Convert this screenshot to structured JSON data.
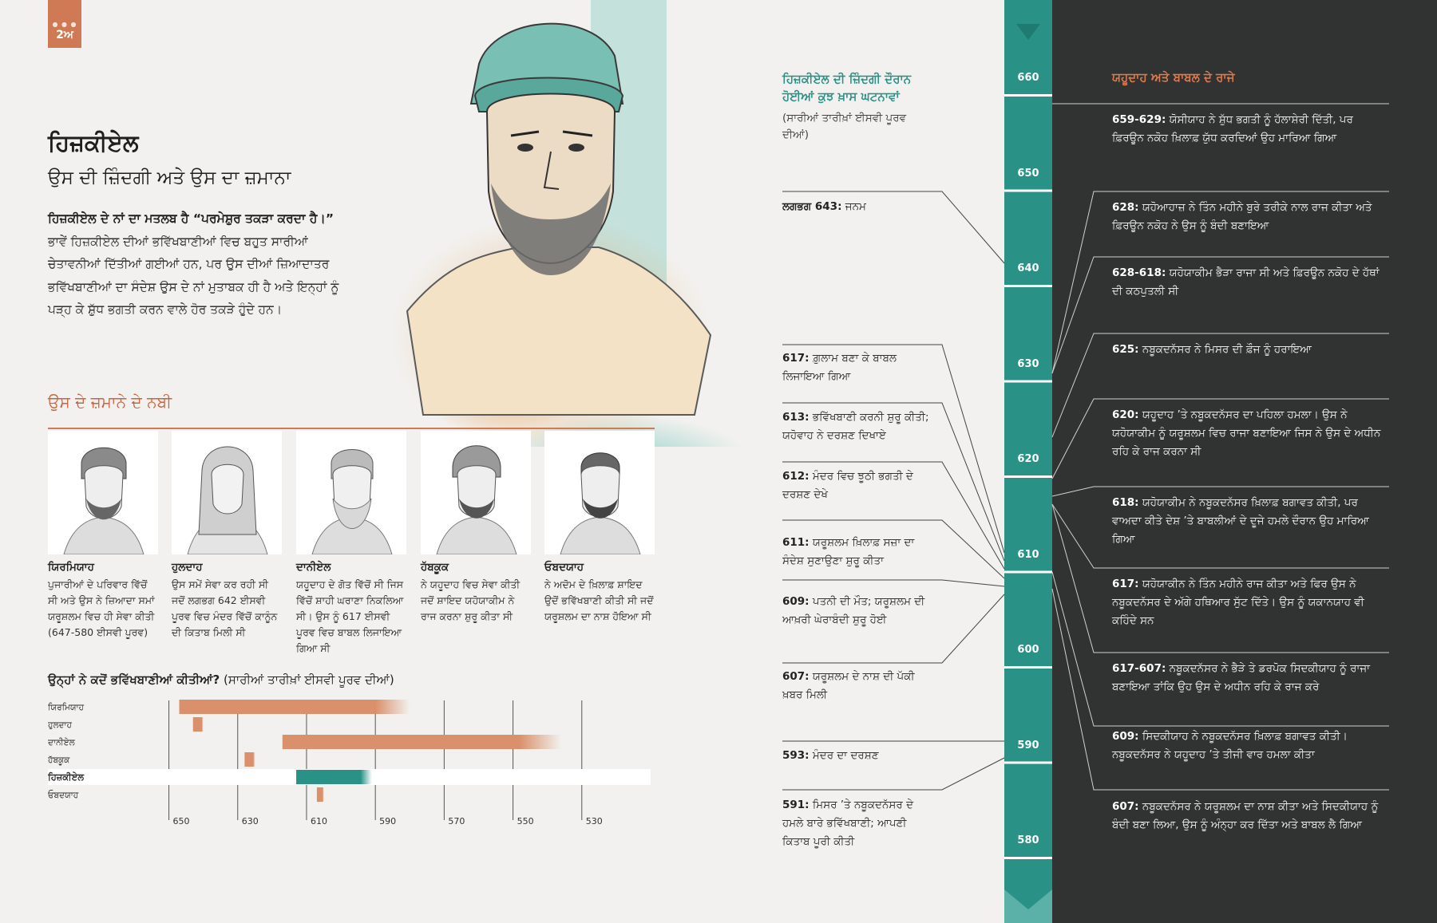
{
  "badge": {
    "label": "2ਅ"
  },
  "title": "ਹਿਜ਼ਕੀਏਲ",
  "subtitle": "ਉਸ ਦੀ ਜ਼ਿੰਦਗੀ ਅਤੇ ਉਸ ਦਾ ਜ਼ਮਾਨਾ",
  "intro": {
    "bold": "ਹਿਜ਼ਕੀਏਲ ਦੇ ਨਾਂ ਦਾ ਮਤਲਬ ਹੈ “ਪਰਮੇਸ਼ੁਰ ਤਕੜਾ ਕਰਦਾ ਹੈ।”",
    "text": " ਭਾਵੇਂ ਹਿਜ਼ਕੀਏਲ ਦੀਆਂ ਭਵਿੱਖਬਾਣੀਆਂ ਵਿਚ ਬਹੁਤ ਸਾਰੀਆਂ ਚੇਤਾਵਨੀਆਂ ਦਿੱਤੀਆਂ ਗਈਆਂ ਹਨ, ਪਰ ਉਸ ਦੀਆਂ ਜ਼ਿਆਦਾਤਰ ਭਵਿੱਖਬਾਣੀਆਂ ਦਾ ਸੰਦੇਸ਼ ਉਸ ਦੇ ਨਾਂ ਮੁਤਾਬਕ ਹੀ ਹੈ ਅਤੇ ਇਨ੍ਹਾਂ ਨੂੰ ਪੜ੍ਹ ਕੇ ਸ਼ੁੱਧ ਭਗਤੀ ਕਰਨ ਵਾਲੇ ਹੋਰ ਤਕੜੇ ਹੁੰਦੇ ਹਨ।"
  },
  "prophets": {
    "heading": "ਉਸ ਦੇ ਜ਼ਮਾਨੇ ਦੇ ਨਬੀ",
    "cards": [
      {
        "name": "ਯਿਰਮਿਯਾਹ",
        "desc": "ਪੁਜਾਰੀਆਂ ਦੇ ਪਰਿਵਾਰ ਵਿੱਚੋਂ ਸੀ ਅਤੇ ਉਸ ਨੇ ਜ਼ਿਆਦਾ ਸਮਾਂ ਯਰੂਸ਼ਲਮ ਵਿਚ ਹੀ ਸੇਵਾ ਕੀਤੀ (647-580 ਈਸਵੀ ਪੂਰਵ)"
      },
      {
        "name": "ਹੁਲਦਾਹ",
        "desc": "ਉਸ ਸਮੇਂ ਸੇਵਾ ਕਰ ਰਹੀ ਸੀ ਜਦੋਂ ਲਗਭਗ 642 ਈਸਵੀ ਪੂਰਵ ਵਿਚ ਮੰਦਰ ਵਿੱਚੋਂ ਕਾਨੂੰਨ ਦੀ ਕਿਤਾਬ ਮਿਲੀ ਸੀ"
      },
      {
        "name": "ਦਾਨੀਏਲ",
        "desc": "ਯਹੂਦਾਹ ਦੇ ਗੋਤ ਵਿੱਚੋਂ ਸੀ ਜਿਸ ਵਿੱਚੋਂ ਸ਼ਾਹੀ ਘਰਾਣਾ ਨਿਕਲਿਆ ਸੀ। ਉਸ ਨੂੰ 617 ਈਸਵੀ ਪੂਰਵ ਵਿਚ ਬਾਬਲ ਲਿਜਾਇਆ ਗਿਆ ਸੀ"
      },
      {
        "name": "ਹੱਬਕੂਕ",
        "desc": "ਨੇ ਯਹੂਦਾਹ ਵਿਚ ਸੇਵਾ ਕੀਤੀ ਜਦੋਂ ਸ਼ਾਇਦ ਯਹੋਯਾਕੀਮ ਨੇ ਰਾਜ ਕਰਨਾ ਸ਼ੁਰੂ ਕੀਤਾ ਸੀ"
      },
      {
        "name": "ਓਬਦਯਾਹ",
        "desc": "ਨੇ ਅਦੋਮ ਦੇ ਖ਼ਿਲਾਫ਼ ਸ਼ਾਇਦ ਉਦੋਂ ਭਵਿੱਖਬਾਣੀ ਕੀਤੀ ਸੀ ਜਦੋਂ ਯਰੂਸ਼ਲਮ ਦਾ ਨਾਸ਼ ਹੋਇਆ ਸੀ"
      }
    ]
  },
  "chart_title": {
    "bold": "ਉਨ੍ਹਾਂ ਨੇ ਕਦੋਂ ਭਵਿੱਖਬਾਣੀਆਂ ਕੀਤੀਆਂ?",
    "text": " (ਸਾਰੀਆਂ ਤਾਰੀਖ਼ਾਂ ਈਸਵੀ ਪੂਰਵ ਦੀਆਂ)"
  },
  "chart_data": {
    "type": "bar",
    "orientation": "horizontal-range",
    "x_ticks": [
      650,
      630,
      610,
      590,
      570,
      550,
      530
    ],
    "xlim": [
      655,
      510
    ],
    "series": [
      {
        "name": "ਯਿਰਮਿਯਾਹ",
        "start": 647,
        "end": 580,
        "color": "#d9906b",
        "highlight": false
      },
      {
        "name": "ਹੁਲਦਾਹ",
        "start": 643,
        "end": 640,
        "color": "#d9906b",
        "highlight": false
      },
      {
        "name": "ਦਾਨੀਏਲ",
        "start": 617,
        "end": 536,
        "color": "#d9906b",
        "highlight": false
      },
      {
        "name": "ਹੱਬਕੂਕ",
        "start": 628,
        "end": 625,
        "color": "#d9906b",
        "highlight": false
      },
      {
        "name": "ਹਿਜ਼ਕੀਏਲ",
        "start": 613,
        "end": 591,
        "color": "#2a9187",
        "highlight": true
      },
      {
        "name": "ਓਬਦਯਾਹ",
        "start": 607,
        "end": 605,
        "color": "#d9906b",
        "highlight": false
      }
    ]
  },
  "events": {
    "heading": "ਹਿਜ਼ਕੀਏਲ ਦੀ ਜ਼ਿੰਦਗੀ ਦੌਰਾਨ ਹੋਈਆਂ ਕੁਝ ਖ਼ਾਸ ਘਟਨਾਵਾਂ",
    "note": "(ਸਾਰੀਆਂ ਤਾਰੀਖ਼ਾਂ ਈਸਵੀ ਪੂਰਵ ਦੀਆਂ)",
    "items": [
      {
        "date": "ਲਗਭਗ 643:",
        "text": " ਜਨਮ"
      },
      {
        "date": "617:",
        "text": " ਗ਼ੁਲਾਮ ਬਣਾ ਕੇ ਬਾਬਲ ਲਿਜਾਇਆ ਗਿਆ"
      },
      {
        "date": "613:",
        "text": " ਭਵਿੱਖਬਾਣੀ ਕਰਨੀ ਸ਼ੁਰੂ ਕੀਤੀ; ਯਹੋਵਾਹ ਨੇ ਦਰਸ਼ਣ ਦਿਖਾਏ"
      },
      {
        "date": "612:",
        "text": " ਮੰਦਰ ਵਿਚ ਝੂਠੀ ਭਗਤੀ ਦੇ ਦਰਸ਼ਣ ਦੇਖੇ"
      },
      {
        "date": "611:",
        "text": " ਯਰੂਸ਼ਲਮ ਖ਼ਿਲਾਫ਼ ਸਜ਼ਾ ਦਾ ਸੰਦੇਸ਼ ਸੁਣਾਉਣਾ ਸ਼ੁਰੂ ਕੀਤਾ"
      },
      {
        "date": "609:",
        "text": " ਪਤਨੀ ਦੀ ਮੌਤ; ਯਰੂਸ਼ਲਮ ਦੀ ਆਖ਼ਰੀ ਘੇਰਾਬੰਦੀ ਸ਼ੁਰੂ ਹੋਈ"
      },
      {
        "date": "607:",
        "text": " ਯਰੂਸ਼ਲਮ ਦੇ ਨਾਸ਼ ਦੀ ਪੱਕੀ ਖ਼ਬਰ ਮਿਲੀ"
      },
      {
        "date": "593:",
        "text": " ਮੰਦਰ ਦਾ ਦਰਸ਼ਣ"
      },
      {
        "date": "591:",
        "text": " ਮਿਸਰ ’ਤੇ ਨਬੂਕਦਨੱਸਰ ਦੇ ਹਮਲੇ ਬਾਰੇ ਭਵਿੱਖਬਾਣੀ; ਆਪਣੀ ਕਿਤਾਬ ਪੂਰੀ ਕੀਤੀ"
      }
    ]
  },
  "ruler": {
    "ticks": [
      "660",
      "650",
      "640",
      "630",
      "620",
      "610",
      "600",
      "590",
      "580"
    ]
  },
  "kings": {
    "heading": "ਯਹੂਦਾਹ ਅਤੇ ਬਾਬਲ ਦੇ ਰਾਜੇ",
    "items": [
      {
        "date": "659-629:",
        "text": " ਯੋਸੀਯਾਹ ਨੇ ਸ਼ੁੱਧ ਭਗਤੀ ਨੂੰ ਹੱਲਾਸ਼ੇਰੀ ਦਿੱਤੀ, ਪਰ ਫ਼ਿਰਊਨ ਨਕੋਹ ਖ਼ਿਲਾਫ਼ ਯੁੱਧ ਕਰਦਿਆਂ ਉਹ ਮਾਰਿਆ ਗਿਆ"
      },
      {
        "date": "628:",
        "text": " ਯਹੋਆਹਾਜ਼ ਨੇ ਤਿੰਨ ਮਹੀਨੇ ਬੁਰੇ ਤਰੀਕੇ ਨਾਲ ਰਾਜ ਕੀਤਾ ਅਤੇ ਫ਼ਿਰਊਨ ਨਕੋਹ ਨੇ ਉਸ ਨੂੰ ਬੰਦੀ ਬਣਾਇਆ"
      },
      {
        "date": "628-618:",
        "text": " ਯਹੋਯਾਕੀਮ ਭੈੜਾ ਰਾਜਾ ਸੀ ਅਤੇ ਫ਼ਿਰਊਨ ਨਕੋਹ ਦੇ ਹੱਥਾਂ ਦੀ ਕਠਪੁਤਲੀ ਸੀ"
      },
      {
        "date": "625:",
        "text": " ਨਬੂਕਦਨੱਸਰ ਨੇ ਮਿਸਰ ਦੀ ਫ਼ੌਜ ਨੂੰ ਹਰਾਇਆ"
      },
      {
        "date": "620:",
        "text": " ਯਹੂਦਾਹ ’ਤੇ ਨਬੂਕਦਨੱਸਰ ਦਾ ਪਹਿਲਾ ਹਮਲਾ। ਉਸ ਨੇ ਯਹੋਯਾਕੀਮ ਨੂੰ ਯਰੂਸ਼ਲਮ ਵਿਚ ਰਾਜਾ ਬਣਾਇਆ ਜਿਸ ਨੇ ਉਸ ਦੇ ਅਧੀਨ ਰਹਿ ਕੇ ਰਾਜ ਕਰਨਾ ਸੀ"
      },
      {
        "date": "618:",
        "text": " ਯਹੋਯਾਕੀਮ ਨੇ ਨਬੂਕਦਨੱਸਰ ਖ਼ਿਲਾਫ਼ ਬਗਾਵਤ ਕੀਤੀ, ਪਰ ਵਾਅਦਾ ਕੀਤੇ ਦੇਸ਼ ’ਤੇ ਬਾਬਲੀਆਂ ਦੇ ਦੂਜੇ ਹਮਲੇ ਦੌਰਾਨ ਉਹ ਮਾਰਿਆ ਗਿਆ"
      },
      {
        "date": "617:",
        "text": " ਯਹੋਯਾਕੀਨ ਨੇ ਤਿੰਨ ਮਹੀਨੇ ਰਾਜ ਕੀਤਾ ਅਤੇ ਫਿਰ ਉਸ ਨੇ ਨਬੂਕਦਨੱਸਰ ਦੇ ਅੱਗੇ ਹਥਿਆਰ ਸੁੱਟ ਦਿੱਤੇ। ਉਸ ਨੂੰ ਯਕਾਨਯਾਹ ਵੀ ਕਹਿੰਦੇ ਸਨ"
      },
      {
        "date": "617-607:",
        "text": " ਨਬੂਕਦਨੱਸਰ ਨੇ ਭੈੜੇ ਤੇ ਡਰਪੋਕ ਸਿਦਕੀਯਾਹ ਨੂੰ ਰਾਜਾ ਬਣਾਇਆ ਤਾਂਕਿ ਉਹ ਉਸ ਦੇ ਅਧੀਨ ਰਹਿ ਕੇ ਰਾਜ ਕਰੇ"
      },
      {
        "date": "609:",
        "text": " ਸਿਦਕੀਯਾਹ ਨੇ ਨਬੂਕਦਨੱਸਰ ਖ਼ਿਲਾਫ਼ ਬਗਾਵਤ ਕੀਤੀ। ਨਬੂਕਦਨੱਸਰ ਨੇ ਯਹੂਦਾਹ ’ਤੇ ਤੀਜੀ ਵਾਰ ਹਮਲਾ ਕੀਤਾ"
      },
      {
        "date": "607:",
        "text": " ਨਬੂਕਦਨੱਸਰ ਨੇ ਯਰੂਸ਼ਲਮ ਦਾ ਨਾਸ਼ ਕੀਤਾ ਅਤੇ ਸਿਦਕੀਯਾਹ ਨੂੰ ਬੰਦੀ ਬਣਾ ਲਿਆ, ਉਸ ਨੂੰ ਅੰਨ੍ਹਾ ਕਰ ਦਿੱਤਾ ਅਤੇ ਬਾਬਲ ਲੈ ਗਿਆ"
      }
    ]
  }
}
